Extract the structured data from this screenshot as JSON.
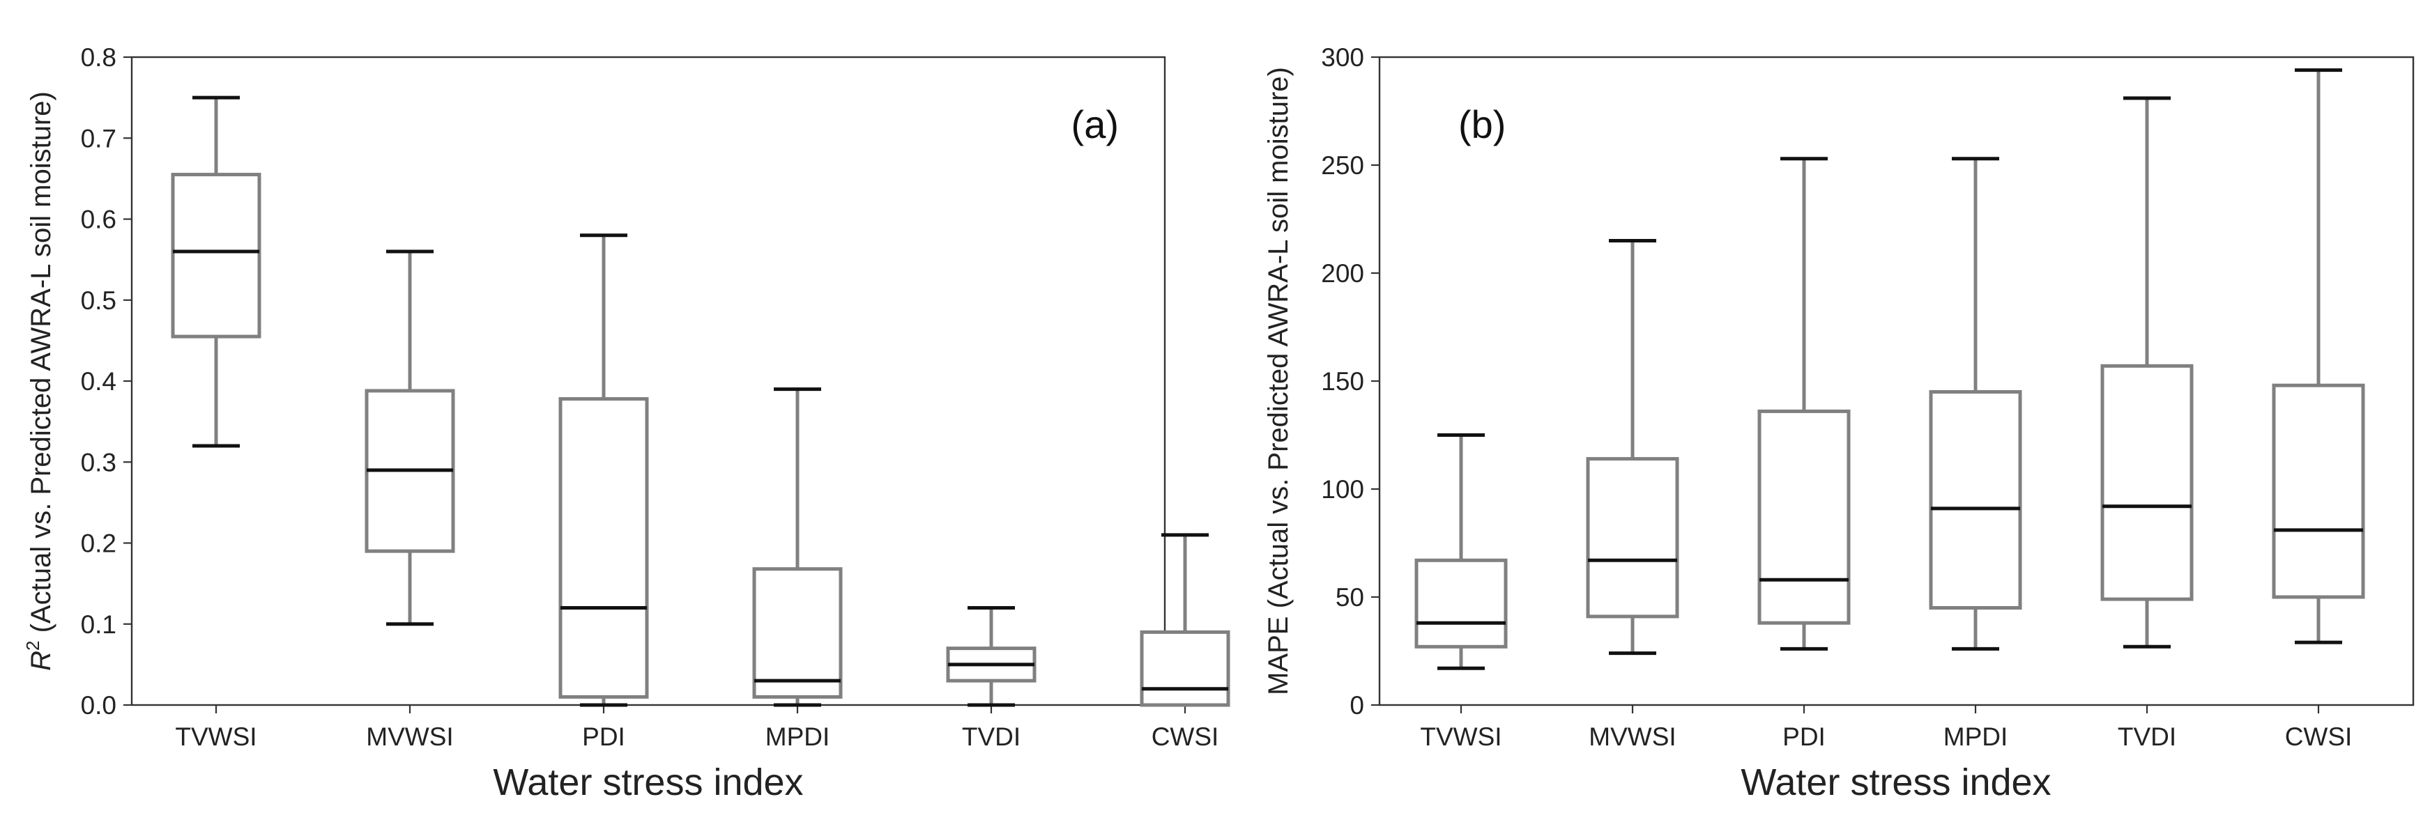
{
  "chart_data": [
    {
      "type": "box",
      "panel_label": "(a)",
      "xlabel": "Water stress index",
      "ylabel_prefix": "R",
      "ylabel_sup": "2",
      "ylabel_rest": " (Actual vs. Predicted AWRA-L soil moisture)",
      "ylim": [
        0,
        0.8
      ],
      "yticks": [
        "0.0",
        "0.1",
        "0.2",
        "0.3",
        "0.4",
        "0.5",
        "0.6",
        "0.7",
        "0.8"
      ],
      "ytick_values": [
        0,
        0.1,
        0.2,
        0.3,
        0.4,
        0.5,
        0.6,
        0.7,
        0.8
      ],
      "categories": [
        "TVWSI",
        "MVWSI",
        "PDI",
        "MPDI",
        "TVDI",
        "CWSI"
      ],
      "boxes": [
        {
          "min": 0.32,
          "q1": 0.455,
          "median": 0.56,
          "q3": 0.655,
          "max": 0.75
        },
        {
          "min": 0.1,
          "q1": 0.19,
          "median": 0.29,
          "q3": 0.388,
          "max": 0.56
        },
        {
          "min": 0.0,
          "q1": 0.01,
          "median": 0.12,
          "q3": 0.378,
          "max": 0.58
        },
        {
          "min": 0.0,
          "q1": 0.01,
          "median": 0.03,
          "q3": 0.168,
          "max": 0.39
        },
        {
          "min": 0.0,
          "q1": 0.03,
          "median": 0.05,
          "q3": 0.07,
          "max": 0.12
        },
        {
          "min": 0.0,
          "q1": 0.0,
          "median": 0.02,
          "q3": 0.09,
          "max": 0.21
        }
      ]
    },
    {
      "type": "box",
      "panel_label": "(b)",
      "xlabel": "Water stress index",
      "ylabel": "MAPE (Actual vs. Predicted AWRA-L soil moisture)",
      "ylim": [
        0,
        300
      ],
      "yticks": [
        "0",
        "50",
        "100",
        "150",
        "200",
        "250",
        "300"
      ],
      "ytick_values": [
        0,
        50,
        100,
        150,
        200,
        250,
        300
      ],
      "categories": [
        "TVWSI",
        "MVWSI",
        "PDI",
        "MPDI",
        "TVDI",
        "CWSI"
      ],
      "boxes": [
        {
          "min": 17,
          "q1": 27,
          "median": 38,
          "q3": 67,
          "max": 125
        },
        {
          "min": 24,
          "q1": 41,
          "median": 67,
          "q3": 114,
          "max": 215
        },
        {
          "min": 26,
          "q1": 38,
          "median": 58,
          "q3": 136,
          "max": 253
        },
        {
          "min": 26,
          "q1": 45,
          "median": 91,
          "q3": 145,
          "max": 253
        },
        {
          "min": 27,
          "q1": 49,
          "median": 92,
          "q3": 157,
          "max": 281
        },
        {
          "min": 29,
          "q1": 50,
          "median": 81,
          "q3": 148,
          "max": 294
        }
      ]
    }
  ]
}
